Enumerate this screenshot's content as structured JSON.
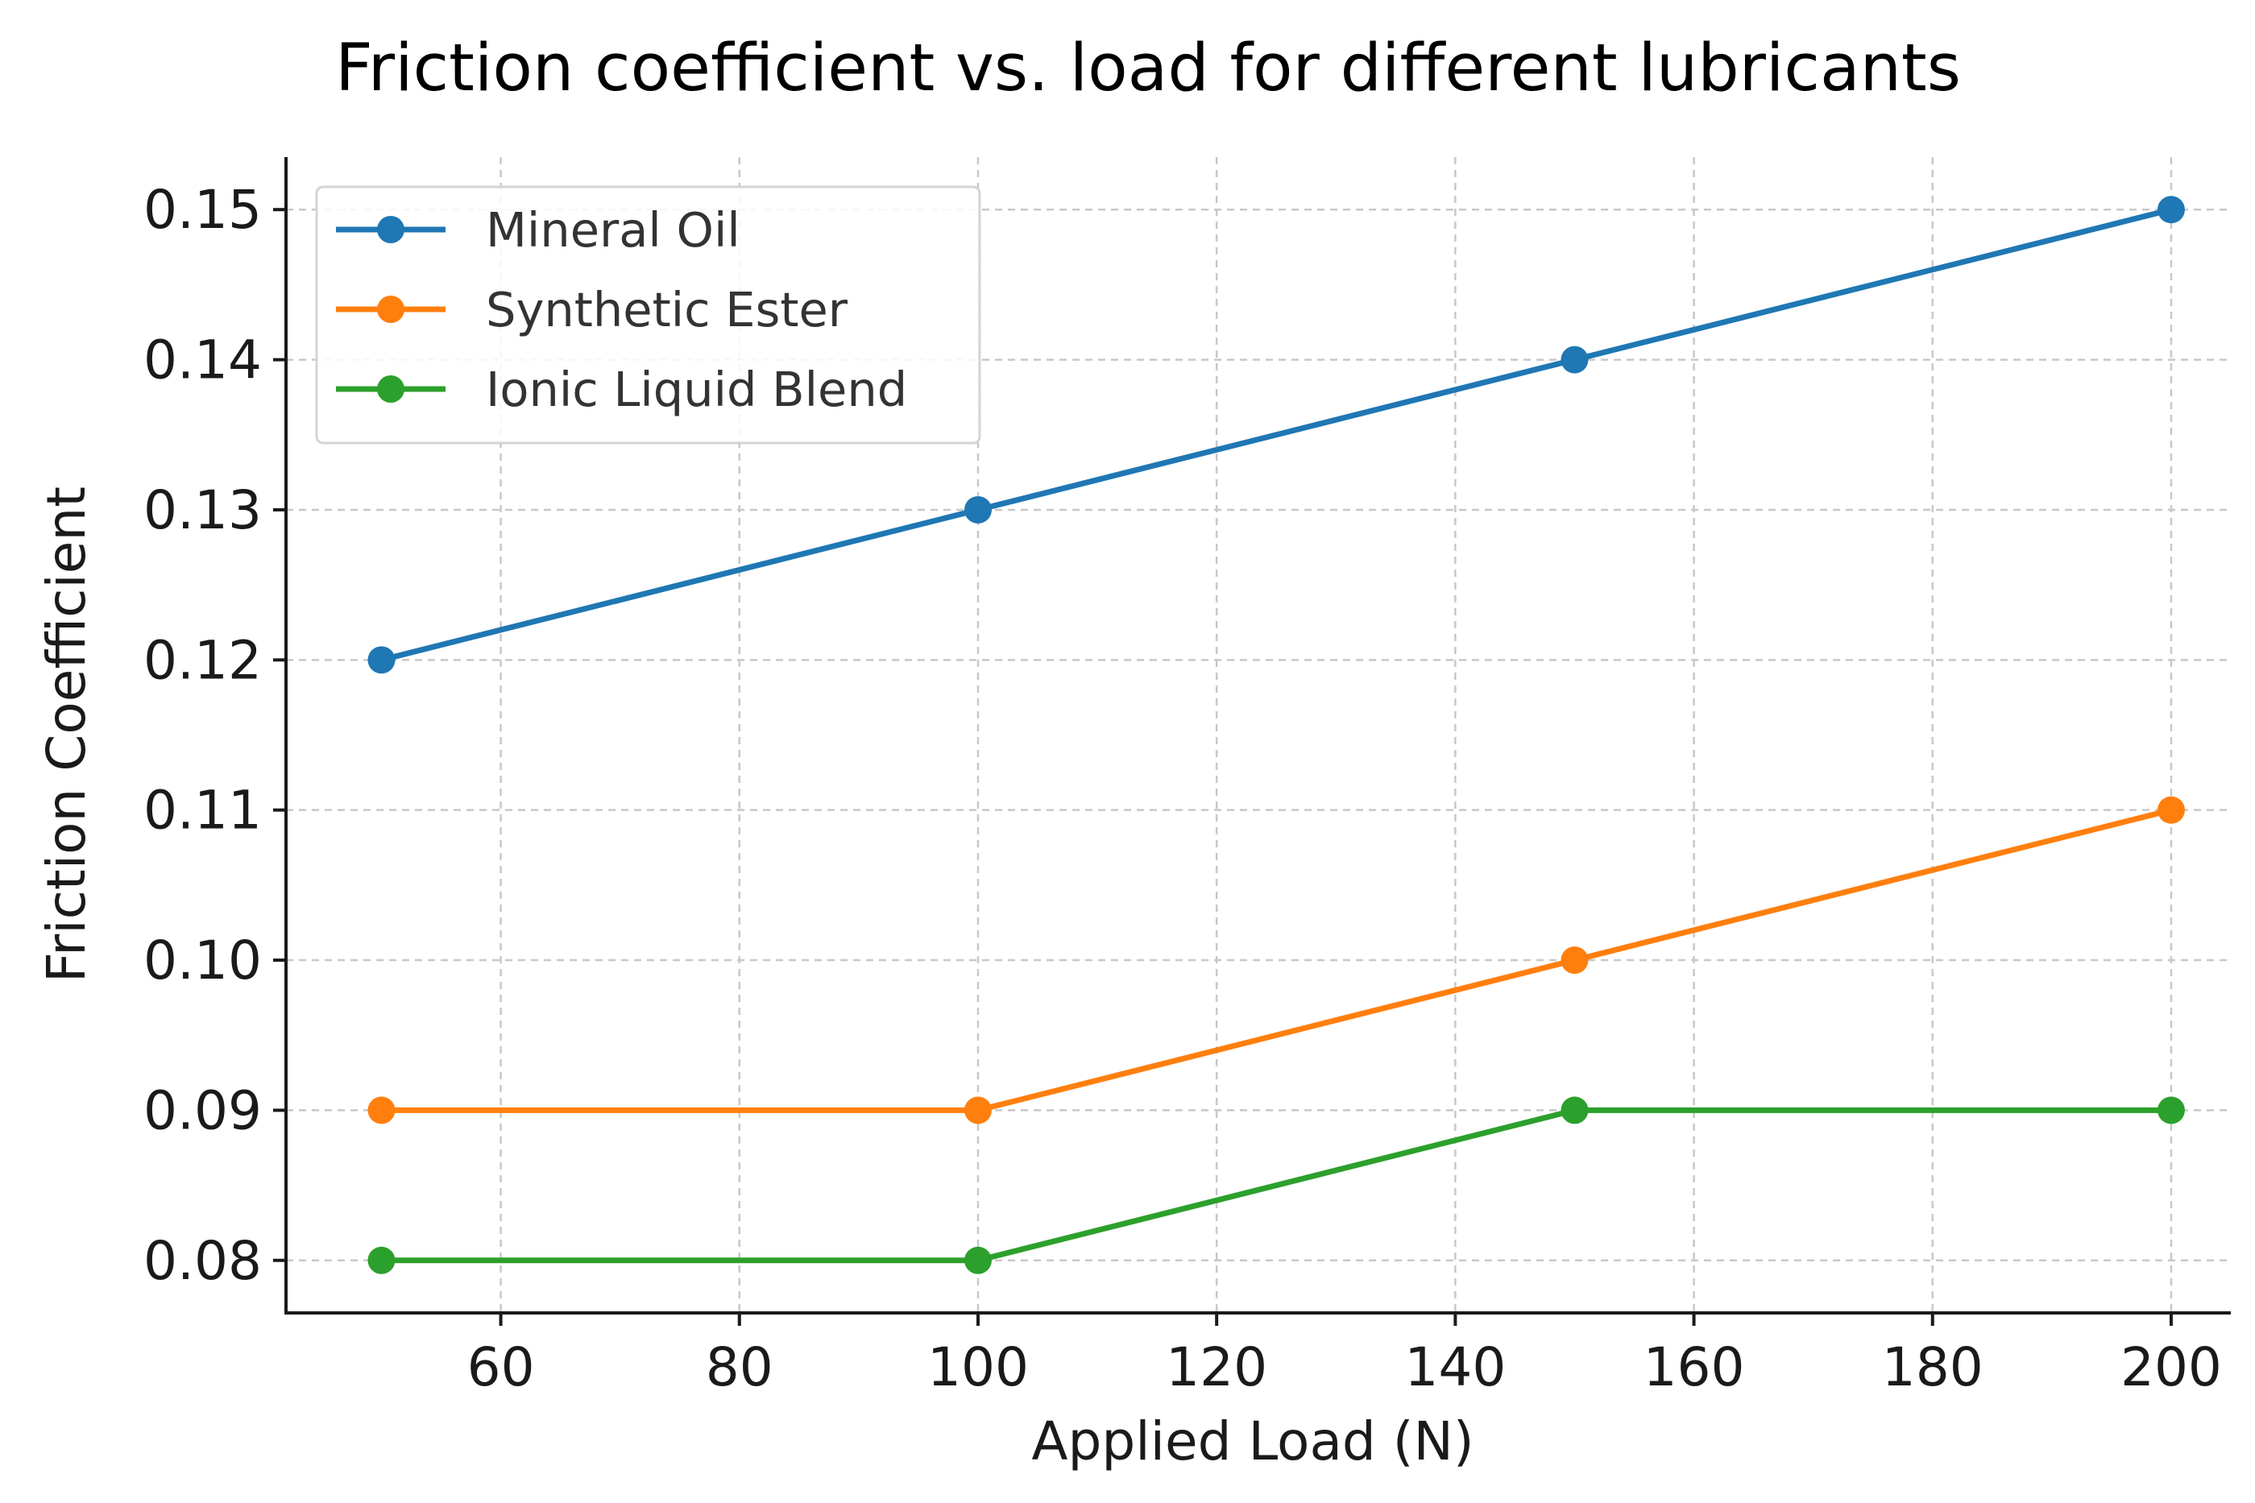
{
  "chart_data": {
    "type": "line",
    "title": "Friction coefficient vs. load for different lubricants",
    "xlabel": "Applied Load (N)",
    "ylabel": "Friction Coefficient",
    "x": [
      50,
      100,
      150,
      200
    ],
    "xlim": [
      42,
      205
    ],
    "ylim": [
      0.0765,
      0.1535
    ],
    "xticks": [
      "60",
      "80",
      "100",
      "120",
      "140",
      "160",
      "180",
      "200"
    ],
    "yticks": [
      "0.08",
      "0.09",
      "0.10",
      "0.11",
      "0.12",
      "0.13",
      "0.14",
      "0.15"
    ],
    "grid": true,
    "legend_position": "top-left",
    "series": [
      {
        "name": "Mineral Oil",
        "color": "#1f77b4",
        "values": [
          0.12,
          0.13,
          0.14,
          0.15
        ]
      },
      {
        "name": "Synthetic Ester",
        "color": "#ff7f0e",
        "values": [
          0.09,
          0.09,
          0.1,
          0.11
        ]
      },
      {
        "name": "Ionic Liquid Blend",
        "color": "#2ca02c",
        "values": [
          0.08,
          0.08,
          0.09,
          0.09
        ]
      }
    ]
  }
}
